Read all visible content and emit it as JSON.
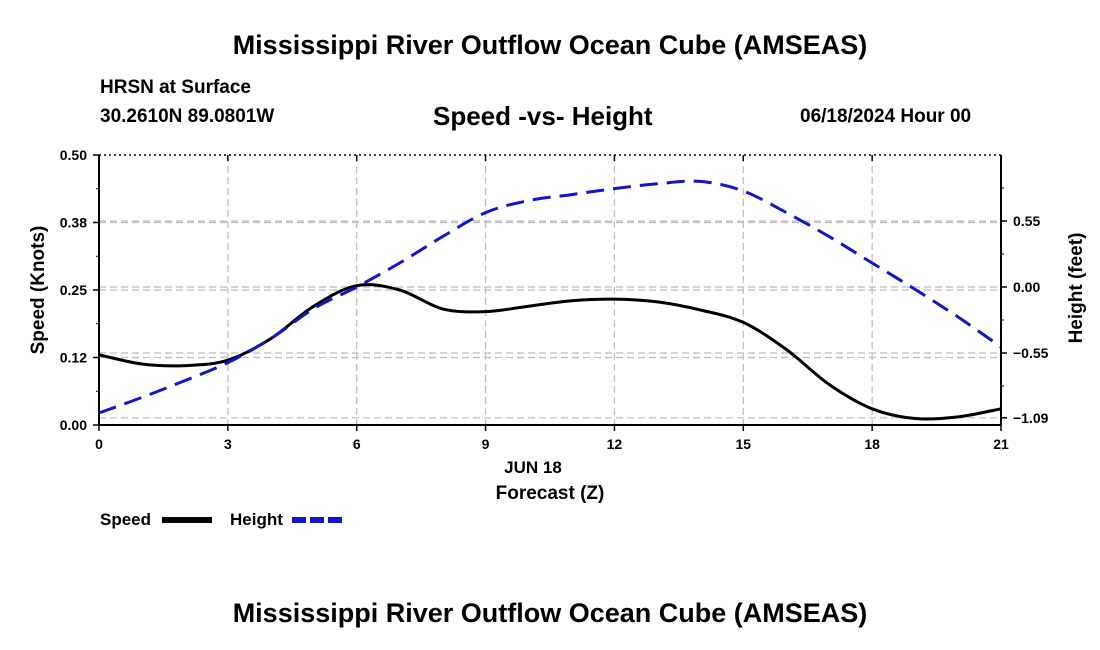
{
  "page": {
    "title": "Mississippi River Outflow Ocean Cube (AMSEAS)",
    "title_bottom": "Mississippi River Outflow Ocean Cube (AMSEAS)",
    "location_line1": "HRSN at Surface",
    "location_line2": "30.2610N  89.0801W",
    "subtitle": "Speed -vs- Height",
    "date_label": "06/18/2024 Hour 00"
  },
  "chart_data": {
    "type": "line",
    "title": "Speed -vs- Height",
    "xlabel": "Forecast (Z)",
    "xlabel_date": "JUN 18",
    "ylabel": "Speed (Knots)",
    "y2label": "Height (feet)",
    "xlim": [
      0,
      21
    ],
    "ylim": [
      0,
      0.5
    ],
    "y2lim": [
      -1.15,
      1.1
    ],
    "x_ticks": [
      0,
      3,
      6,
      9,
      12,
      15,
      18,
      21
    ],
    "x_tick_labels": [
      "0",
      "3",
      "6",
      "9",
      "12",
      "15",
      "18",
      "21"
    ],
    "y_ticks": [
      0,
      0.125,
      0.25,
      0.375,
      0.5
    ],
    "y_tick_labels": [
      "0.00",
      "0.12",
      "0.25",
      "0.38",
      "0.50"
    ],
    "y2_ticks": [
      0.55,
      0,
      -0.55,
      -1.09
    ],
    "y2_tick_labels": [
      "0.55",
      "0.00",
      "−0.55",
      "−1.09"
    ],
    "grid": true,
    "legend_position": "bottom-left",
    "series": [
      {
        "name": "Speed",
        "axis": "left",
        "color": "#000000",
        "style": "solid",
        "x": [
          0,
          1,
          2,
          3,
          4,
          5,
          6,
          7,
          8,
          9,
          10,
          11,
          12,
          13,
          14,
          15,
          16,
          17,
          18,
          19,
          20,
          21
        ],
        "values": [
          0.13,
          0.113,
          0.11,
          0.12,
          0.16,
          0.22,
          0.258,
          0.25,
          0.215,
          0.21,
          0.22,
          0.23,
          0.233,
          0.228,
          0.213,
          0.19,
          0.14,
          0.075,
          0.03,
          0.012,
          0.015,
          0.03
        ]
      },
      {
        "name": "Height",
        "axis": "right",
        "color": "#1414cc",
        "style": "dashed",
        "x": [
          0,
          1,
          2,
          3,
          4,
          5,
          6,
          7,
          8,
          9,
          10,
          11,
          12,
          13,
          14,
          15,
          16,
          17,
          18,
          19,
          20,
          21
        ],
        "values": [
          -1.05,
          -0.92,
          -0.78,
          -0.63,
          -0.43,
          -0.18,
          0.0,
          0.2,
          0.42,
          0.62,
          0.72,
          0.77,
          0.82,
          0.86,
          0.88,
          0.8,
          0.62,
          0.42,
          0.2,
          -0.02,
          -0.25,
          -0.5
        ]
      }
    ]
  }
}
